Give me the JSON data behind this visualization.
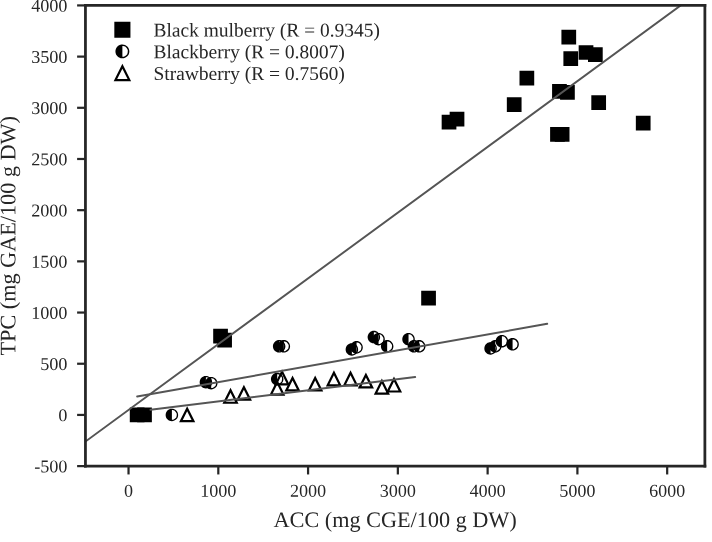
{
  "chart_data": {
    "type": "scatter",
    "xlabel": "ACC (mg CGE/100 g DW)",
    "ylabel": "TPC (mg GAE/100 g DW)",
    "xlim": [
      -480,
      6420
    ],
    "ylim": [
      -500,
      4000
    ],
    "xticks": [
      0,
      1000,
      2000,
      3000,
      4000,
      5000,
      6000
    ],
    "yticks": [
      -500,
      0,
      500,
      1000,
      1500,
      2000,
      2500,
      3000,
      3500,
      4000
    ],
    "grid": false,
    "legend": "top left",
    "series": [
      {
        "name": "Black mulberry (R = 0.9345)",
        "marker": "square",
        "color": "#000000",
        "x": [
          96,
          178,
          1025,
          1070,
          3342,
          3570,
          3659,
          4296,
          4437,
          4800,
          4889,
          4904,
          4926,
          5096,
          5200,
          5237,
          4778,
          4830,
          5733
        ],
        "values": [
          0,
          0,
          770,
          730,
          1140,
          2860,
          2890,
          3030,
          3290,
          3160,
          3150,
          3690,
          3480,
          3540,
          3520,
          3050,
          2740,
          2740,
          2850
        ]
      },
      {
        "name": "Blackberry (R = 0.8007)",
        "marker": "circle",
        "color": "#000000",
        "x": [
          483,
          862,
          921,
          1656,
          1678,
          1730,
          2488,
          2540,
          2733,
          2785,
          2881,
          3119,
          3179,
          3238,
          4033,
          4085,
          4159,
          4278
        ],
        "values": [
          0,
          320,
          310,
          350,
          670,
          670,
          640,
          660,
          760,
          740,
          670,
          740,
          670,
          670,
          650,
          670,
          720,
          690
        ]
      },
      {
        "name": "Strawberry (R = 0.7560)",
        "marker": "triangle",
        "color": "#000000",
        "x": [
          653,
          1136,
          1285,
          1656,
          1710,
          1827,
          2079,
          2288,
          2473,
          2644,
          2822,
          2957
        ],
        "values": [
          0,
          180,
          210,
          260,
          360,
          300,
          300,
          350,
          350,
          330,
          270,
          290
        ]
      },
      {
        "type": "line",
        "color": "#555555",
        "x": [
          -480,
          6150
        ],
        "values": [
          -260,
          4000
        ]
      },
      {
        "type": "line",
        "color": "#555555",
        "x": [
          96,
          4664
        ],
        "values": [
          180,
          890
        ]
      },
      {
        "type": "line",
        "color": "#555555",
        "x": [
          245,
          3193
        ],
        "values": [
          50,
          370
        ]
      }
    ]
  }
}
